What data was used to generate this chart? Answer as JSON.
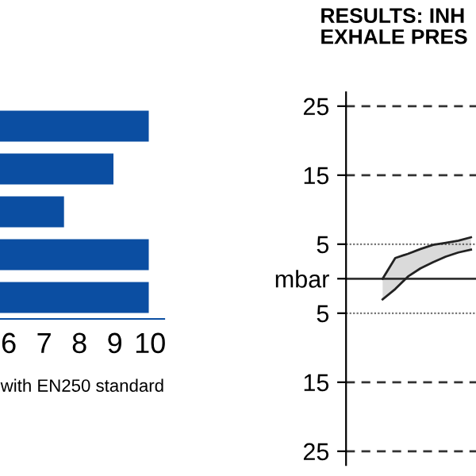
{
  "chart_data": [
    {
      "type": "bar",
      "orientation": "horizontal",
      "categories": [
        null,
        null,
        null,
        null,
        null
      ],
      "values": [
        10,
        9,
        7.6,
        10,
        10
      ],
      "color": "#0b4ea2",
      "xlim": [
        5.75,
        10.4
      ],
      "xticks": [
        6,
        7,
        8,
        9,
        10
      ],
      "tick_labels": "x",
      "annotations": [
        "with EN250 standard"
      ]
    },
    {
      "type": "line",
      "title": "RESULTS: INH\nEXHALE PRES",
      "categories": [
        null,
        null,
        null,
        null,
        null,
        null,
        null,
        null
      ],
      "series": [
        {
          "color": "#222222",
          "values": [
            0,
            3,
            3.6,
            4.3,
            4.9,
            5.2,
            5.5,
            6
          ],
          "upper": [
            0,
            3,
            3.6,
            4.3,
            4.9,
            5.2,
            5.5,
            6
          ],
          "lower": [
            -3,
            -1.5,
            0.3,
            1.5,
            2.4,
            3.2,
            3.8,
            4.2
          ]
        },
        {
          "color": "#222222",
          "values": [
            -3,
            -1.5,
            0.3,
            1.5,
            2.4,
            3.2,
            3.8,
            4.2
          ]
        }
      ],
      "ylim": [
        -27,
        27
      ],
      "yticks": [
        25,
        15,
        5,
        {
          "value": 0,
          "label": "mbar"
        },
        {
          "value": -5,
          "label": "5"
        },
        {
          "value": -15,
          "label": "15"
        },
        {
          "value": -25,
          "label": "25"
        }
      ],
      "tick_labels": "y",
      "ref_lines": [
        {
          "axis": "y",
          "value": 25,
          "line_style": "dashed"
        },
        {
          "axis": "y",
          "value": 15,
          "line_style": "dashed"
        },
        {
          "axis": "y",
          "value": 5,
          "line_style": "dotted"
        },
        {
          "axis": "y",
          "value": 0,
          "line_style": "solid"
        },
        {
          "axis": "y",
          "value": -5,
          "line_style": "dotted"
        },
        {
          "axis": "y",
          "value": -15,
          "line_style": "dashed"
        },
        {
          "axis": "y",
          "value": -25,
          "line_style": "dashed"
        }
      ]
    }
  ]
}
